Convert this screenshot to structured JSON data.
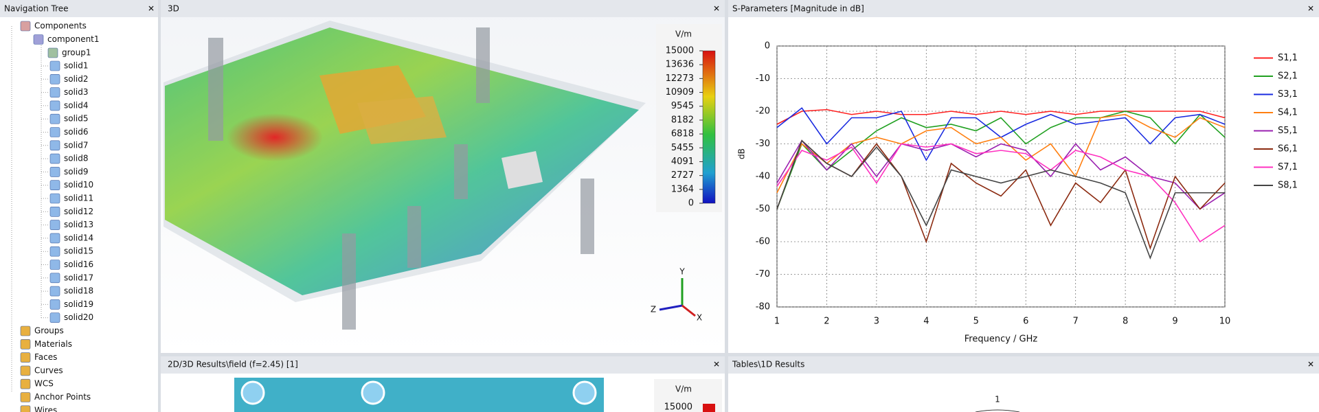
{
  "panels": {
    "nav": {
      "title": "Navigation Tree"
    },
    "view3d": {
      "title": "3D",
      "legend": {
        "unit": "V/m",
        "ticks": [
          15000,
          13636,
          12273,
          10909,
          9545,
          8182,
          6818,
          5455,
          4091,
          2727,
          1364,
          0
        ]
      },
      "axes": [
        "Y",
        "Z",
        "X"
      ]
    },
    "sparams": {
      "title": "S-Parameters [Magnitude in dB]"
    },
    "results2d": {
      "title": "2D/3D Results\\field (f=2.45) [1]",
      "legend": {
        "unit": "V/m",
        "ticks": [
          15000
        ]
      }
    },
    "tables": {
      "title": "Tables\\1D Results",
      "label": "1"
    }
  },
  "tree": {
    "root": "Components",
    "component": "component1",
    "group": "group1",
    "solids": [
      "solid1",
      "solid2",
      "solid3",
      "solid4",
      "solid5",
      "solid6",
      "solid7",
      "solid8",
      "solid9",
      "solid10",
      "solid11",
      "solid12",
      "solid13",
      "solid14",
      "solid15",
      "solid16",
      "solid17",
      "solid18",
      "solid19",
      "solid20"
    ],
    "folders": [
      "Groups",
      "Materials",
      "Faces",
      "Curves",
      "WCS",
      "Anchor Points",
      "Wires"
    ]
  },
  "chart_data": {
    "type": "line",
    "xlabel": "Frequency / GHz",
    "ylabel": "dB",
    "x": [
      1,
      1.5,
      2,
      2.5,
      3,
      3.5,
      4,
      4.5,
      5,
      5.5,
      6,
      6.5,
      7,
      7.5,
      8,
      8.5,
      9,
      9.5,
      10
    ],
    "xlim": [
      1,
      10
    ],
    "xticks": [
      1,
      2,
      3,
      4,
      5,
      6,
      7,
      8,
      9,
      10
    ],
    "ylim": [
      -80,
      0
    ],
    "yticks": [
      0,
      -10,
      -20,
      -30,
      -40,
      -50,
      -60,
      -70,
      -80
    ],
    "grid": true,
    "series": [
      {
        "name": "S1,1",
        "color": "#ff2020",
        "values": [
          -24,
          -20,
          -19.5,
          -21,
          -20,
          -21,
          -21,
          -20,
          -21,
          -20,
          -21,
          -20,
          -21,
          -20,
          -20,
          -20,
          -20,
          -20,
          -22
        ]
      },
      {
        "name": "S2,1",
        "color": "#20a020",
        "values": [
          -50,
          -30,
          -38,
          -32,
          -26,
          -22,
          -25,
          -24,
          -26,
          -22,
          -30,
          -25,
          -22,
          -22,
          -20,
          -22,
          -30,
          -21,
          -28
        ]
      },
      {
        "name": "S3,1",
        "color": "#1a2be0",
        "values": [
          -25,
          -19,
          -30,
          -22,
          -22,
          -20,
          -35,
          -22,
          -22,
          -28,
          -24,
          -21,
          -24,
          -23,
          -22,
          -30,
          -22,
          -21,
          -24
        ]
      },
      {
        "name": "S4,1",
        "color": "#ff7f10",
        "values": [
          -45,
          -30,
          -36,
          -30,
          -28,
          -30,
          -26,
          -25,
          -30,
          -28,
          -35,
          -30,
          -40,
          -22,
          -21,
          -25,
          -28,
          -22,
          -25
        ]
      },
      {
        "name": "S5,1",
        "color": "#9a20b0",
        "values": [
          -42,
          -29,
          -38,
          -30,
          -40,
          -30,
          -32,
          -30,
          -34,
          -30,
          -32,
          -40,
          -30,
          -38,
          -34,
          -40,
          -42,
          -50,
          -45
        ]
      },
      {
        "name": "S6,1",
        "color": "#8b2a10",
        "values": [
          -50,
          -29,
          -36,
          -40,
          -30,
          -40,
          -60,
          -36,
          -42,
          -46,
          -38,
          -55,
          -42,
          -48,
          -38,
          -62,
          -40,
          -50,
          -42
        ]
      },
      {
        "name": "S7,1",
        "color": "#ff30c0",
        "values": [
          -43,
          -32,
          -35,
          -31,
          -42,
          -30,
          -31,
          -30,
          -33,
          -32,
          -33,
          -38,
          -32,
          -34,
          -38,
          -40,
          -48,
          -60,
          -55
        ]
      },
      {
        "name": "S8,1",
        "color": "#444444",
        "values": [
          -50,
          -29,
          -36,
          -40,
          -31,
          -40,
          -55,
          -38,
          -40,
          -42,
          -40,
          -38,
          -40,
          -42,
          -45,
          -65,
          -45,
          -45,
          -45
        ]
      }
    ]
  }
}
